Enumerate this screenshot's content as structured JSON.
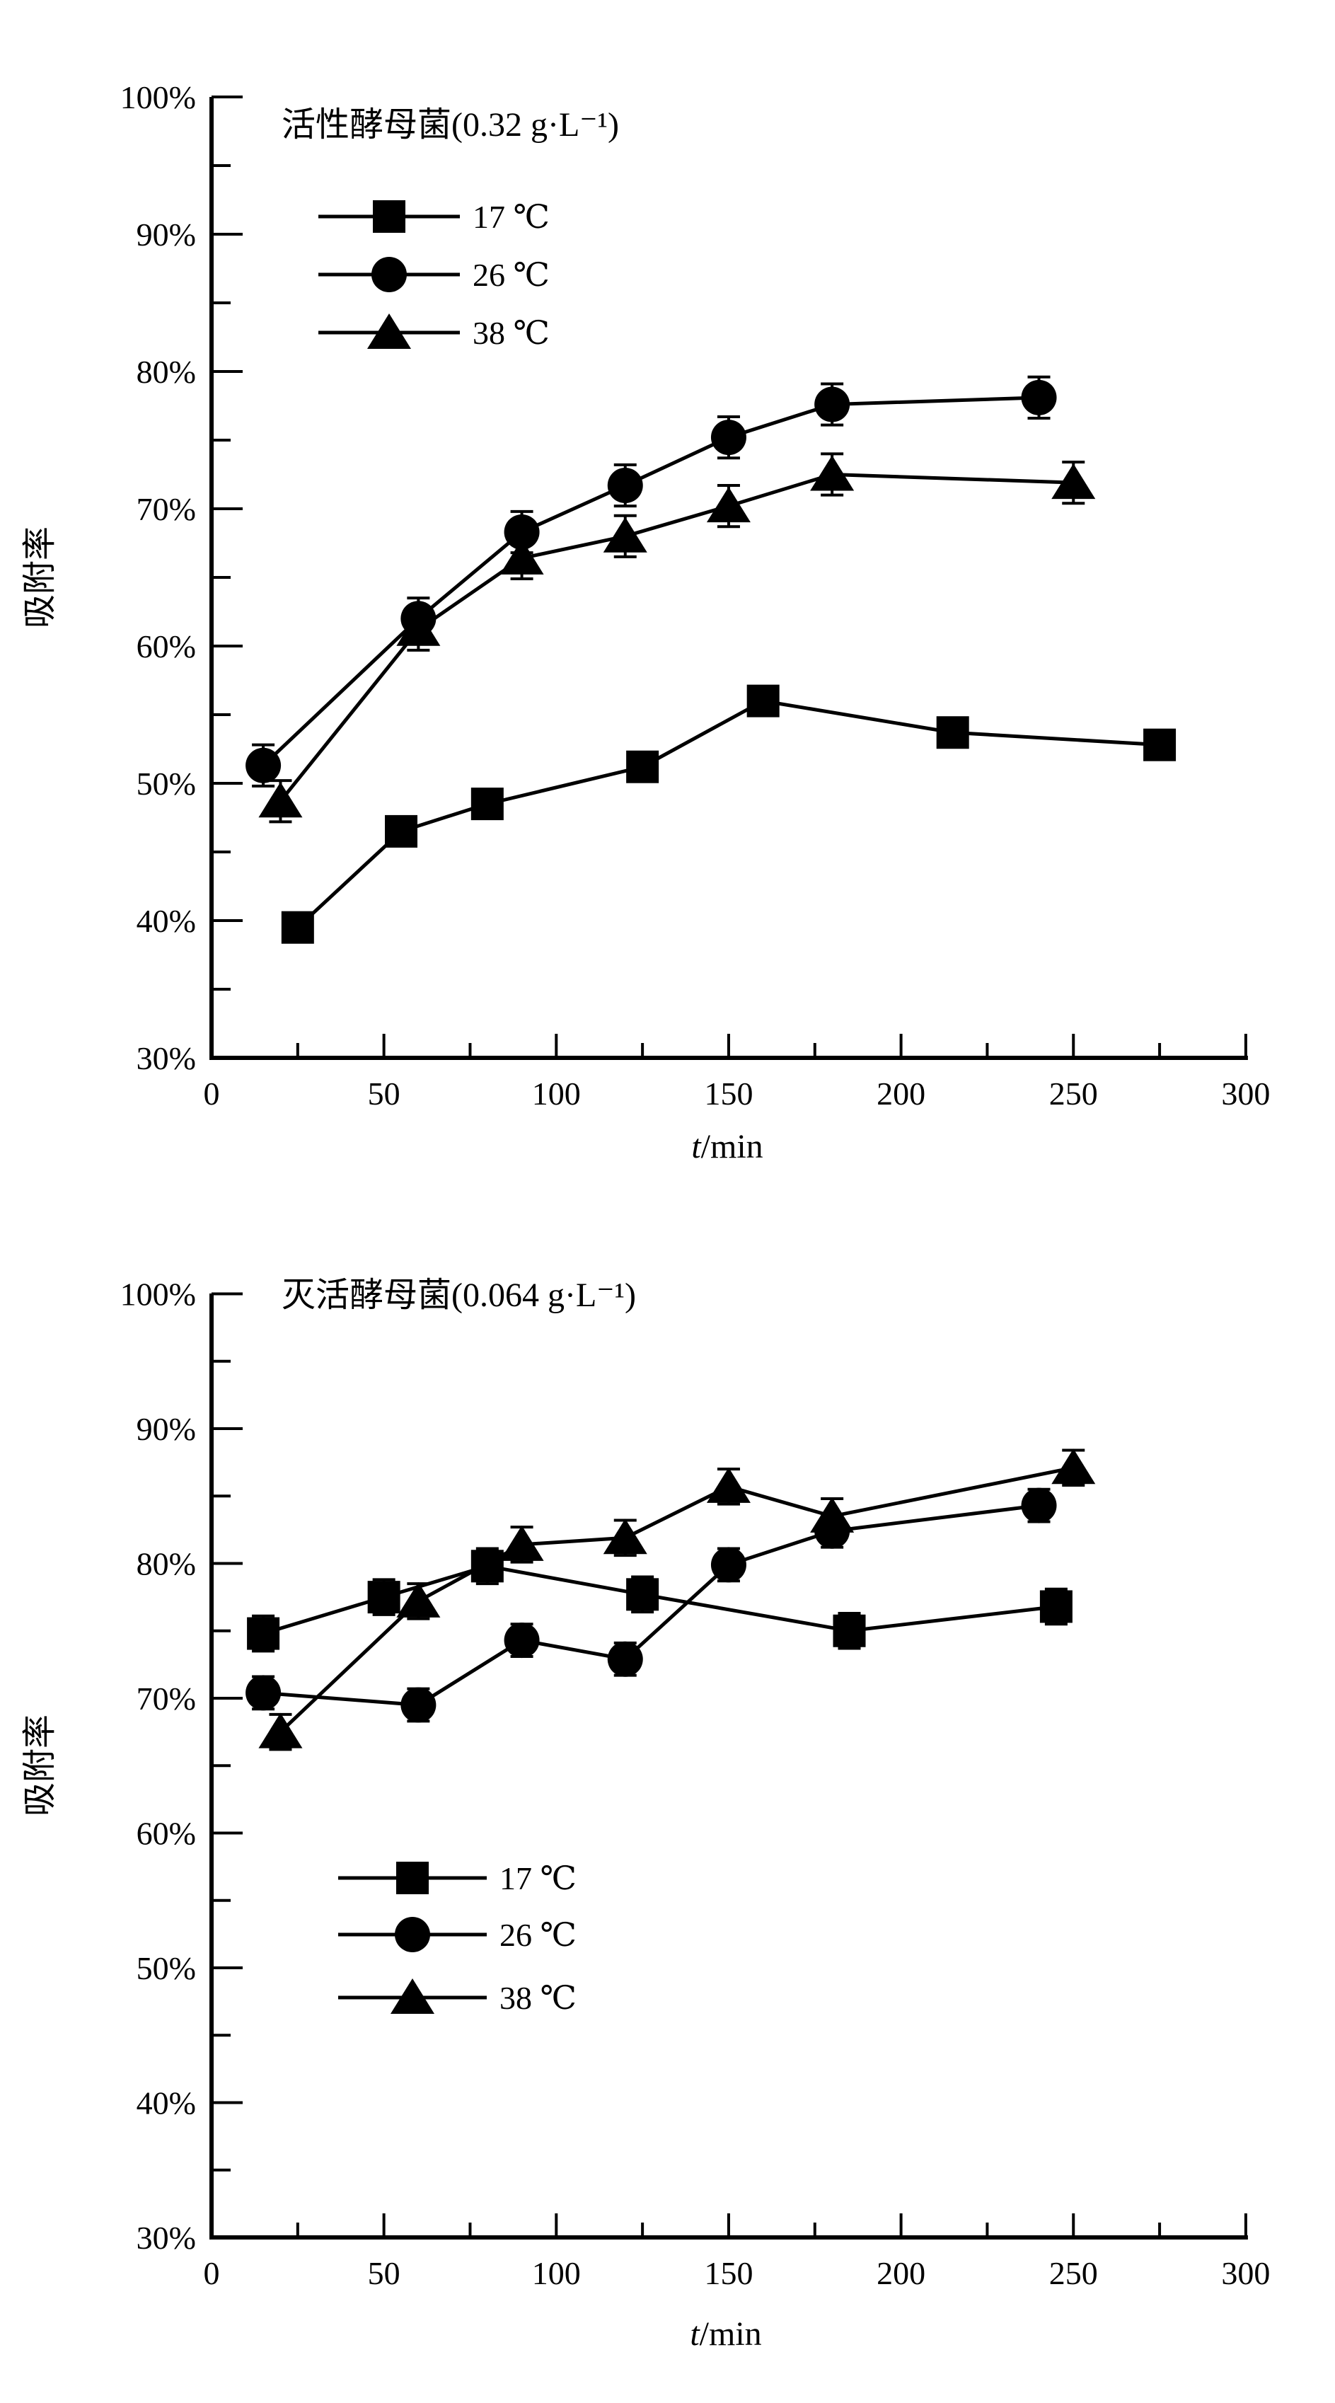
{
  "page": {
    "background": "#ffffff",
    "ink_color": "#000000"
  },
  "chart_data": [
    {
      "type": "line",
      "title": "活性酵母菌(0.32 g·L⁻¹)",
      "ylabel": "吸附率",
      "xlabel": {
        "italic": "t",
        "rest": "/min"
      },
      "legend_position": "top-left-inside",
      "grid": "off",
      "x_axis": {
        "min": 0,
        "max": 300,
        "major_step": 50,
        "minor_step": 25,
        "tick_labels": [
          "0",
          "50",
          "100",
          "150",
          "200",
          "250",
          "300"
        ]
      },
      "y_axis": {
        "min": 30,
        "max": 100,
        "major_step": 10,
        "minor_step": 5,
        "tick_labels": [
          "100%",
          "90%",
          "80%",
          "70%",
          "60%",
          "50%",
          "40%",
          "30%"
        ]
      },
      "series": [
        {
          "name": "17 ℃",
          "marker": "square",
          "x": [
            25,
            55,
            80,
            125,
            160,
            215,
            275
          ],
          "y_pct": [
            39.5,
            46.5,
            48.5,
            51.2,
            56.0,
            53.7,
            52.8
          ],
          "error_pct": 0
        },
        {
          "name": "26 ℃",
          "marker": "circle",
          "x": [
            15,
            60,
            90,
            120,
            150,
            180,
            240
          ],
          "y_pct": [
            51.3,
            62.0,
            68.3,
            71.7,
            75.2,
            77.6,
            78.1
          ],
          "error_pct": 1.5
        },
        {
          "name": "38 ℃",
          "marker": "triangle",
          "x": [
            20,
            60,
            90,
            120,
            150,
            180,
            250
          ],
          "y_pct": [
            48.7,
            61.2,
            66.4,
            68.0,
            70.2,
            72.5,
            71.9
          ],
          "error_pct": 1.5
        }
      ]
    },
    {
      "type": "line",
      "title": "灭活酵母菌(0.064 g·L⁻¹)",
      "ylabel": "吸附率",
      "xlabel": {
        "italic": "t",
        "rest": "/min"
      },
      "legend_position": "bottom-center-inside",
      "grid": "off",
      "x_axis": {
        "min": 0,
        "max": 300,
        "major_step": 50,
        "minor_step": 25,
        "tick_labels": [
          "0",
          "50",
          "100",
          "150",
          "200",
          "250",
          "300"
        ]
      },
      "y_axis": {
        "min": 30,
        "max": 100,
        "major_step": 10,
        "minor_step": 5,
        "tick_labels": [
          "100%",
          "90%",
          "80%",
          "70%",
          "60%",
          "50%",
          "40%",
          "30%"
        ]
      },
      "series": [
        {
          "name": "17 ℃",
          "marker": "square",
          "x": [
            15,
            50,
            80,
            125,
            185,
            245
          ],
          "y_pct": [
            74.8,
            77.5,
            79.8,
            77.7,
            75.0,
            76.8
          ],
          "error_pct": 1.3
        },
        {
          "name": "26 ℃",
          "marker": "circle",
          "x": [
            15,
            60,
            90,
            120,
            150,
            180,
            240
          ],
          "y_pct": [
            70.4,
            69.5,
            74.3,
            72.9,
            79.9,
            82.4,
            84.3
          ],
          "error_pct": 1.2
        },
        {
          "name": "38 ℃",
          "marker": "triangle",
          "x": [
            20,
            60,
            90,
            120,
            150,
            180,
            250
          ],
          "y_pct": [
            67.5,
            77.2,
            81.4,
            81.9,
            85.7,
            83.5,
            87.1
          ],
          "error_pct": 1.3
        }
      ]
    }
  ]
}
